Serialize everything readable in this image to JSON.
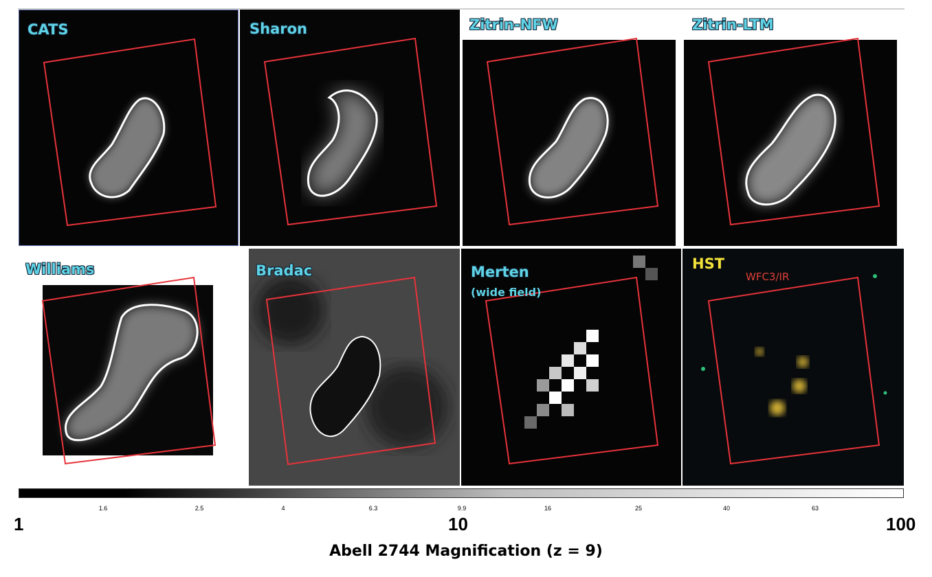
{
  "panels": [
    {
      "id": "cats",
      "label": "CATS"
    },
    {
      "id": "sharon",
      "label": "Sharon"
    },
    {
      "id": "zitrin_nfw",
      "label": "Zitrin-NFW"
    },
    {
      "id": "zitrin_ltm",
      "label": "Zitrin-LTM"
    },
    {
      "id": "williams",
      "label": "Williams"
    },
    {
      "id": "bradac",
      "label": "Bradac"
    },
    {
      "id": "merten",
      "label": "Merten",
      "sublabel": "(wide field)"
    },
    {
      "id": "hst",
      "label": "HST",
      "sublabel": "WFC3/IR"
    }
  ],
  "colorbar": {
    "minor_ticks": [
      "1.6",
      "2.5",
      "4",
      "6.3",
      "9.9",
      "16",
      "25",
      "40",
      "63"
    ],
    "major_ticks": [
      "1",
      "10",
      "100"
    ],
    "scale": "log",
    "range": [
      1,
      100
    ]
  },
  "caption": "Abell 2744  Magnification (z = 9)",
  "colors": {
    "frame": "#e8333a",
    "label": "#5fd3e6",
    "hst_label": "#f2e23a"
  }
}
